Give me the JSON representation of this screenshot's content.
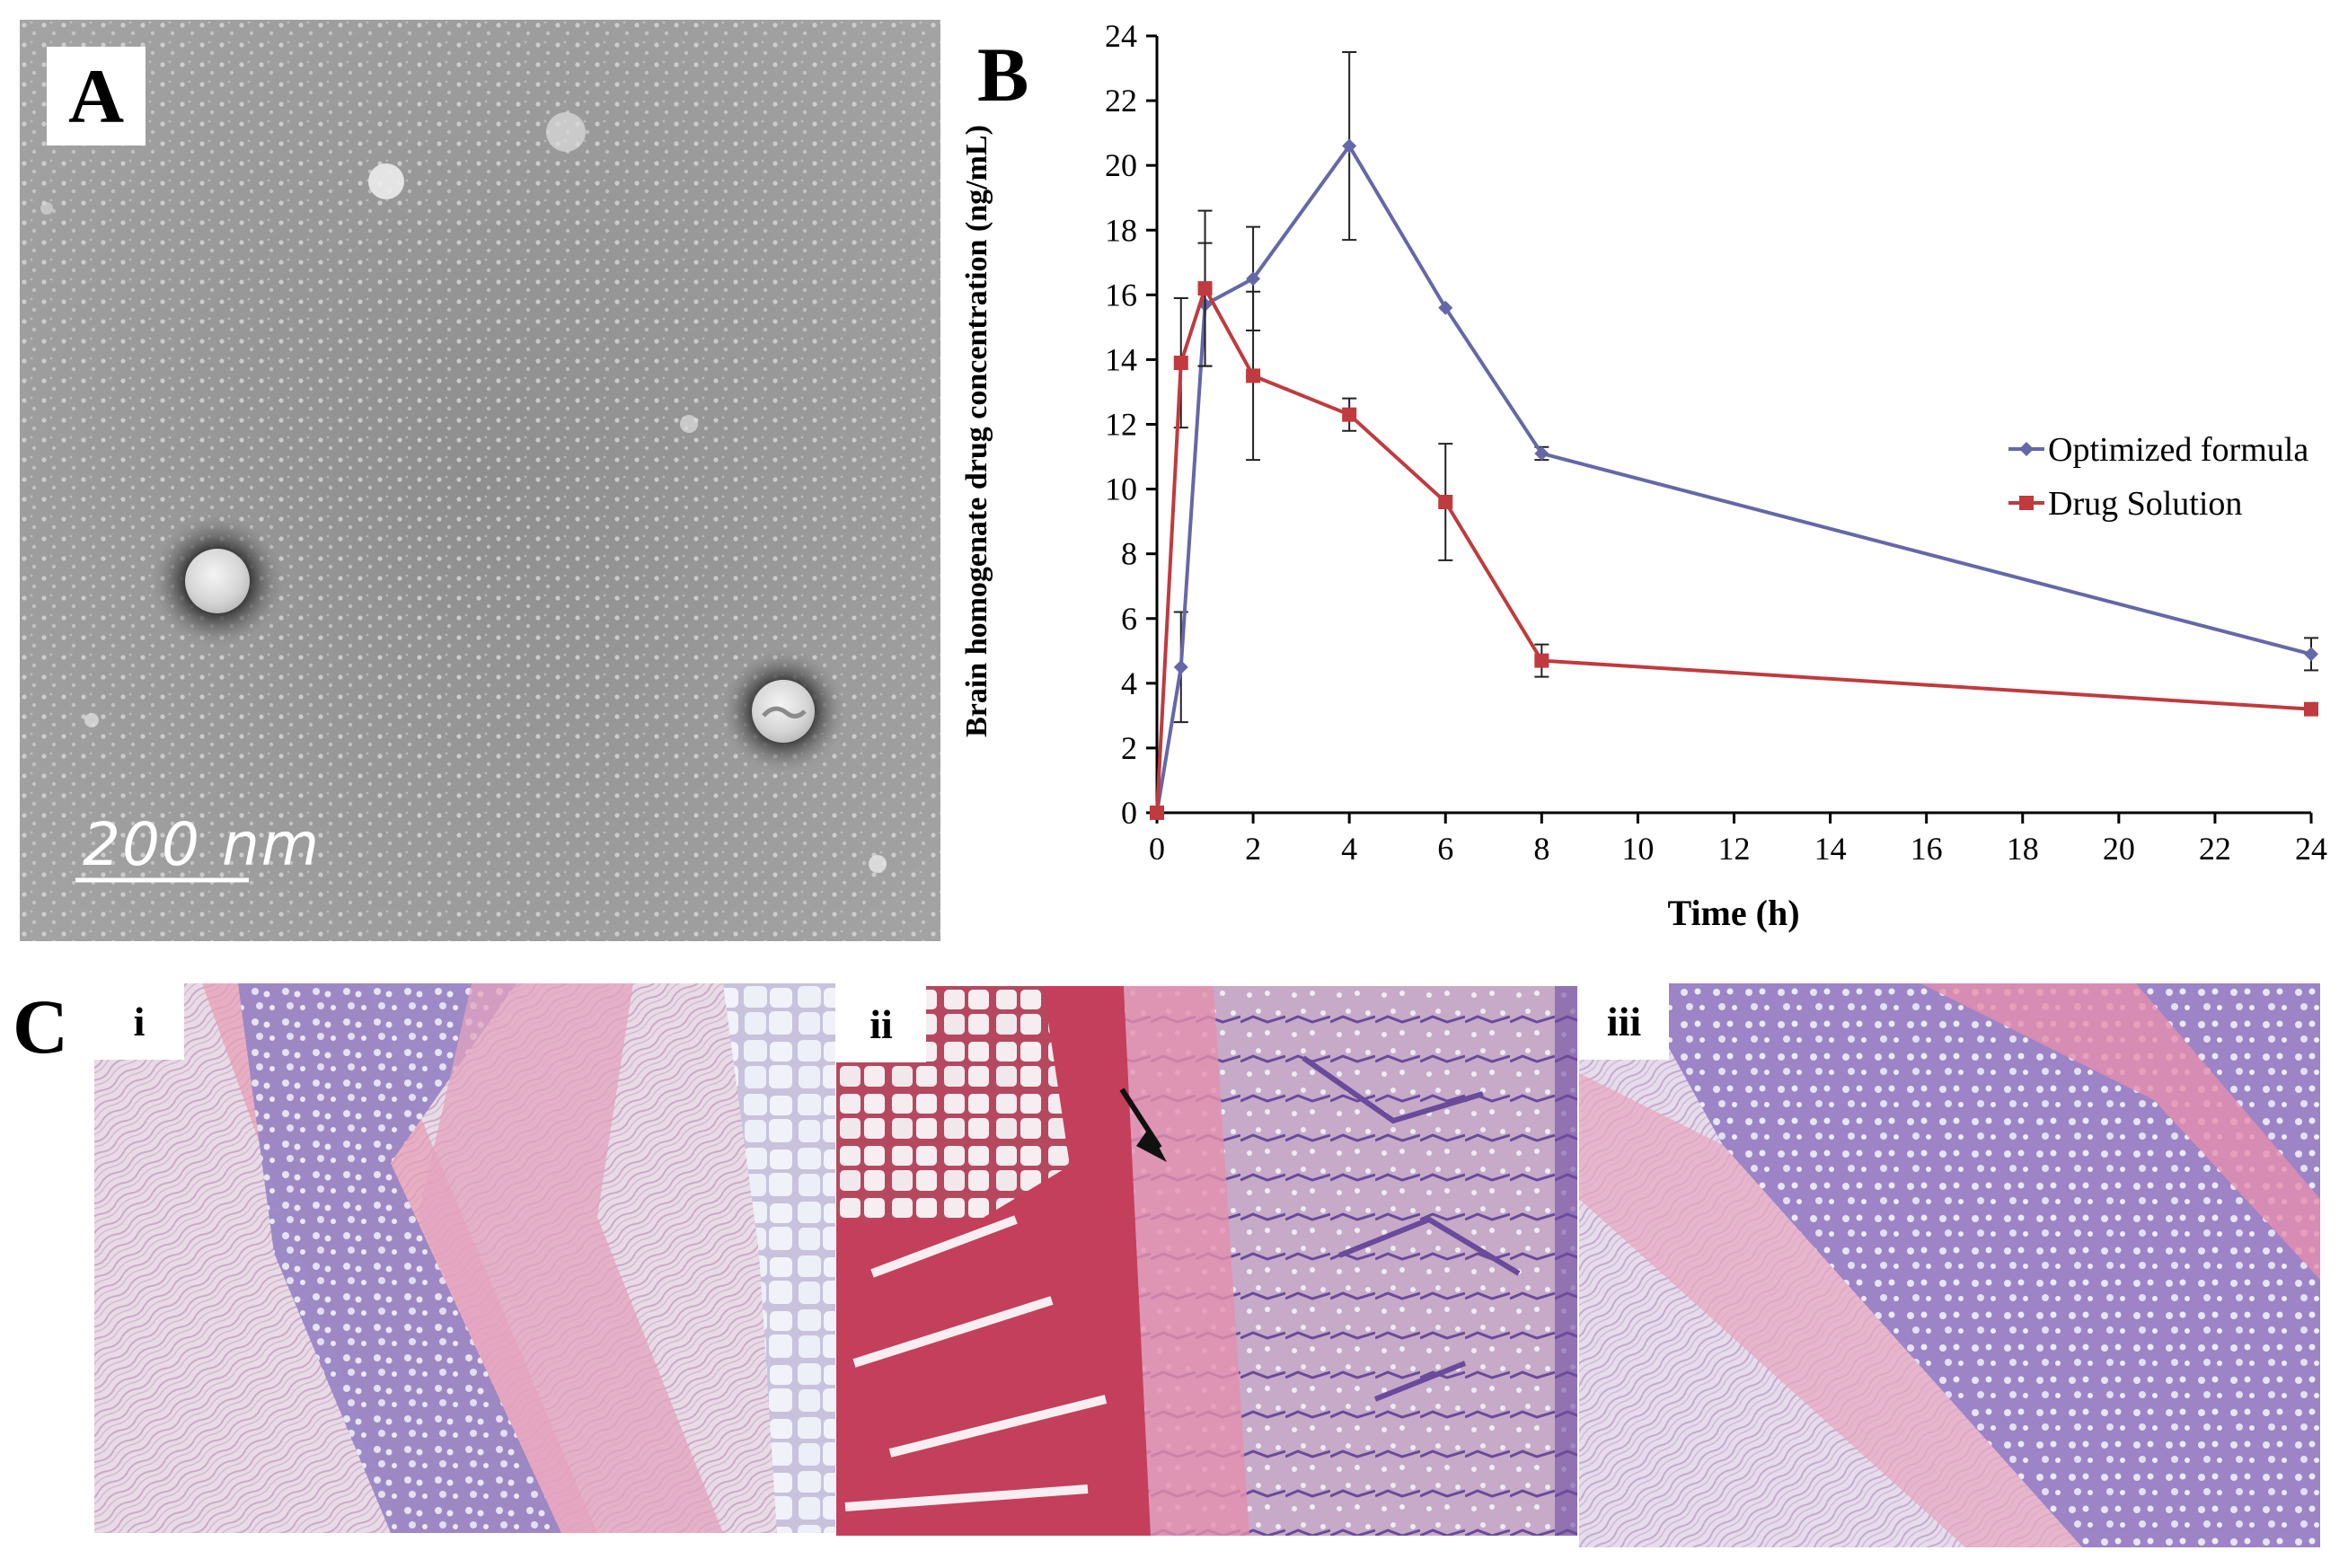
{
  "panels": {
    "a": {
      "letter": "A",
      "scale_bar": "200 nm"
    },
    "b": {
      "letter": "B"
    },
    "c": {
      "letter": "C",
      "tags": [
        "i",
        "ii",
        "iii"
      ]
    }
  },
  "colors": {
    "optimized": "#6667a8",
    "drug_solution": "#c03a3e",
    "axis": "#000000"
  },
  "chart_data": {
    "type": "line",
    "title": "",
    "xlabel": "Time (h)",
    "ylabel": "Brain homogenate drug concentration (ng/mL)",
    "x_ticks": [
      0,
      2,
      4,
      6,
      8,
      10,
      12,
      14,
      16,
      18,
      20,
      22,
      24
    ],
    "y_ticks": [
      0,
      2,
      4,
      6,
      8,
      10,
      12,
      14,
      16,
      18,
      20,
      22,
      24
    ],
    "xlim": [
      0,
      24
    ],
    "ylim": [
      0,
      24
    ],
    "grid": false,
    "legend_position": "right",
    "x_axis_note": "x axis spacing is categorical: 0, 0.5, 1, 2, 4, 6, 8 spaced as printed, 24 placed after 22",
    "series": [
      {
        "name": "Optimized formula",
        "marker": "diamond",
        "color": "#6667a8",
        "x": [
          0,
          0.5,
          1,
          2,
          4,
          6,
          8,
          24
        ],
        "y": [
          0,
          4.5,
          15.7,
          16.5,
          20.6,
          15.6,
          11.1,
          4.9
        ],
        "err": [
          0,
          1.7,
          1.9,
          1.6,
          2.9,
          0,
          0.2,
          0.5
        ]
      },
      {
        "name": "Drug Solution",
        "marker": "square",
        "color": "#c03a3e",
        "x": [
          0,
          0.5,
          1,
          2,
          4,
          6,
          8,
          24
        ],
        "y": [
          0,
          13.9,
          16.2,
          13.5,
          12.3,
          9.6,
          4.7,
          3.2
        ],
        "err": [
          0,
          2.0,
          2.4,
          2.6,
          0.5,
          1.8,
          0.5,
          0
        ]
      }
    ]
  }
}
